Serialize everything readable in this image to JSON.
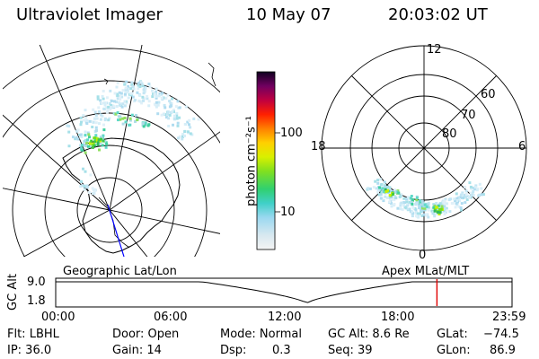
{
  "header": {
    "instrument": "Ultraviolet Imager",
    "date": "10 May 07",
    "time": "20:03:02 UT"
  },
  "colorbar": {
    "unit_label": "photon cm⁻²s⁻¹",
    "ticks": [
      "100",
      "10"
    ]
  },
  "polar_plot": {
    "mlt_labels": [
      "12",
      "18",
      "6",
      "0"
    ],
    "lat_labels": [
      "60",
      "70",
      "80"
    ]
  },
  "panel_labels": {
    "left": "Geographic Lat/Lon",
    "right": "Apex MLat/MLT"
  },
  "timeline": {
    "ylabel": "GC Alt",
    "yticks": [
      "9.0",
      "1.8"
    ],
    "xticks": [
      "00:00",
      "06:00",
      "12:00",
      "18:00",
      "23:59"
    ],
    "marker_time": "20:03",
    "marker_color": "#e00000"
  },
  "status": {
    "flt": "Flt: LBHL",
    "ip": "IP: 36.0",
    "door": "Door: Open",
    "gain": "Gain: 14",
    "mode": "Mode: Normal",
    "dsp_label": "Dsp:",
    "dsp_value": "0.3",
    "gc_alt": "GC Alt: 8.6 Re",
    "seq": "Seq: 39",
    "glat_label": "GLat:",
    "glat_value": "−74.5",
    "glon_label": "GLon:",
    "glon_value": "86.9"
  }
}
